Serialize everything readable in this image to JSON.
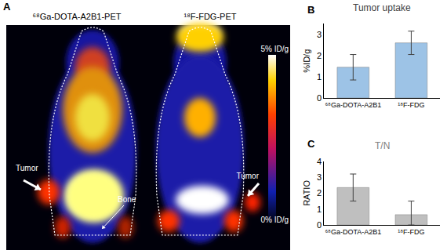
{
  "chart_data": [
    {
      "type": "bar",
      "title": "Tumor uptake",
      "ylabel": "%ID/g",
      "categories": [
        "⁶⁸Ga-DOTA-A2B1",
        "¹⁸F-FDG"
      ],
      "values": [
        1.45,
        2.6
      ],
      "errors_plus": [
        0.6,
        0.55
      ],
      "errors_minus": [
        0.6,
        0.55
      ],
      "color": "#9dc3e6",
      "ylim": [
        0,
        3.5
      ],
      "yticks": [
        0,
        1,
        2,
        3
      ],
      "grid": false,
      "annotations": [
        "B"
      ]
    },
    {
      "type": "bar",
      "title": "T/N",
      "ylabel": "RATIO",
      "categories": [
        "⁶⁸Ga-DOTA-A2B1",
        "¹⁸F-FDG"
      ],
      "values": [
        2.35,
        0.65
      ],
      "errors_plus": [
        0.85,
        0.85
      ],
      "errors_minus": [
        0.85,
        0.65
      ],
      "color": "#bfbfbf",
      "ylim": [
        0,
        4
      ],
      "yticks": [
        0,
        1,
        2,
        3,
        4
      ],
      "grid": false,
      "annotations": [
        "C"
      ]
    }
  ],
  "image_panel": {
    "label": "A",
    "titles": [
      "⁶⁸Ga-DOTA-A2B1-PET",
      "¹⁸F-FDG-PET"
    ],
    "colorbar": {
      "range": [
        0,
        5
      ],
      "ticks": [
        {
          "value": 5,
          "label": "5% ID/g"
        },
        {
          "value": 0,
          "label": "0% ID/g"
        }
      ]
    },
    "annotations": [
      "Tumor",
      "Bone",
      "Tumor"
    ]
  }
}
